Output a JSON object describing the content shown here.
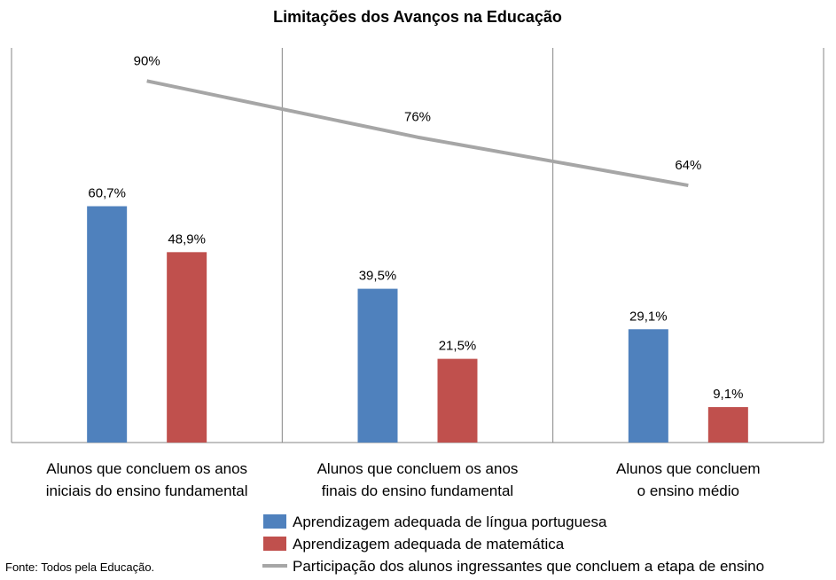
{
  "chart_data": {
    "type": "bar",
    "title": "Limitações dos Avanços na Educação",
    "categories": [
      [
        "Alunos que concluem os anos",
        "iniciais do ensino fundamental"
      ],
      [
        "Alunos que concluem os anos",
        "finais do ensino fundamental"
      ],
      [
        "Alunos que concluem",
        "o ensino médio"
      ]
    ],
    "series": [
      {
        "name": "Aprendizagem adequada de língua portuguesa",
        "kind": "bar",
        "color": "#4f81bd",
        "values": [
          60.7,
          39.5,
          29.1
        ],
        "labels": [
          "60,7%",
          "39,5%",
          "29,1%"
        ]
      },
      {
        "name": "Aprendizagem adequada de matemática",
        "kind": "bar",
        "color": "#c0504d",
        "values": [
          48.9,
          21.5,
          9.1
        ],
        "labels": [
          "48,9%",
          "21,5%",
          "9,1%"
        ]
      },
      {
        "name": "Participação dos alunos ingressantes que concluem a etapa de ensino",
        "kind": "line",
        "color": "#a6a6a6",
        "values": [
          90,
          76,
          64
        ],
        "labels": [
          "90%",
          "76%",
          "64%"
        ]
      }
    ],
    "ylim": [
      0,
      100
    ],
    "grid": false,
    "legend_position": "bottom"
  },
  "source_note": "Fonte: Todos pela Educação."
}
